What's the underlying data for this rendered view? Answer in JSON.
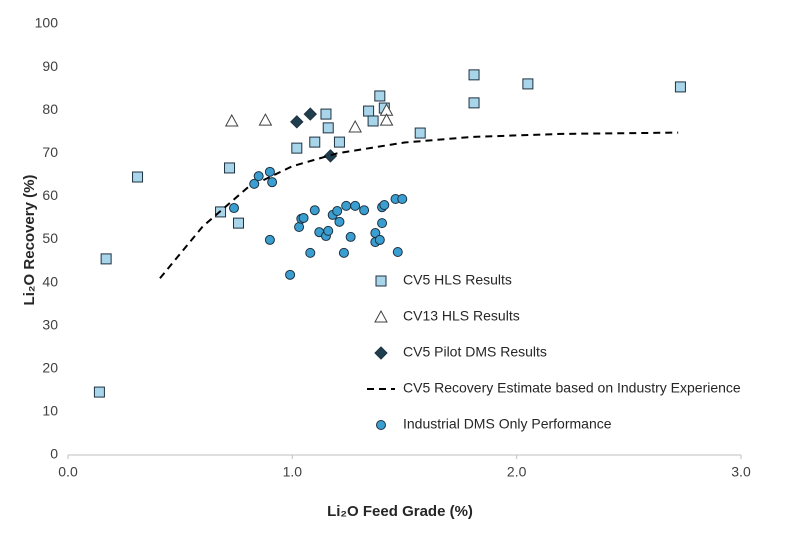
{
  "chart_data": {
    "type": "scatter",
    "x_label": "Li₂O Feed Grade (%)",
    "y_label": "Li₂O Recovery (%)",
    "xlim": [
      0,
      3
    ],
    "ylim": [
      0,
      100
    ],
    "xticks": [
      {
        "value": 0,
        "label": "0.0"
      },
      {
        "value": 1,
        "label": "1.0"
      },
      {
        "value": 2,
        "label": "2.0"
      },
      {
        "value": 3,
        "label": "3.0"
      }
    ],
    "yticks": [
      0,
      10,
      20,
      30,
      40,
      50,
      60,
      70,
      80,
      90,
      100
    ],
    "grid": false,
    "series": [
      {
        "name": "CV5 HLS Results",
        "marker": "square",
        "color": "#a9d5ea",
        "x": [
          0.14,
          0.17,
          0.31,
          0.68,
          0.72,
          0.76,
          1.02,
          1.1,
          1.15,
          1.16,
          1.21,
          1.34,
          1.36,
          1.39,
          1.41,
          1.57,
          1.81,
          1.81,
          2.05,
          2.73
        ],
        "values": [
          14.6,
          45.5,
          64.5,
          56.4,
          66.6,
          53.8,
          71.2,
          72.6,
          79.1,
          75.9,
          72.6,
          79.8,
          77.5,
          83.3,
          80.5,
          74.7,
          88.2,
          81.7,
          86.1,
          85.4
        ]
      },
      {
        "name": "CV13 HLS Results",
        "marker": "triangle",
        "color": "#ffffff",
        "x": [
          0.73,
          0.88,
          1.28,
          1.42,
          1.42
        ],
        "values": [
          77.5,
          77.7,
          76.1,
          80,
          77.7
        ]
      },
      {
        "name": "CV5 Pilot DMS Results",
        "marker": "diamond",
        "color": "#1f3f4f",
        "x": [
          1.02,
          1.08,
          1.17
        ],
        "values": [
          77.3,
          79.1,
          69.4
        ]
      },
      {
        "name": "CV5 Recovery Estimate based on Industry Experience",
        "marker": "line",
        "color": "#000000",
        "x": [
          0.41,
          0.6,
          0.8,
          1.0,
          1.2,
          1.5,
          1.8,
          2.2,
          2.72
        ],
        "values": [
          41,
          53,
          62,
          67,
          70,
          72.5,
          73.8,
          74.5,
          74.8
        ]
      },
      {
        "name": "Industrial DMS Only Performance",
        "marker": "circle",
        "color": "#3a9fd0",
        "x": [
          0.83,
          0.85,
          0.74,
          0.9,
          0.91,
          0.9,
          0.99,
          1.03,
          1.04,
          1.05,
          1.08,
          1.1,
          1.12,
          1.15,
          1.16,
          1.18,
          1.2,
          1.21,
          1.23,
          1.24,
          1.26,
          1.28,
          1.32,
          1.37,
          1.37,
          1.4,
          1.41,
          1.4,
          1.46,
          1.47,
          1.49,
          1.39
        ],
        "values": [
          62.9,
          64.7,
          57.3,
          65.7,
          63.3,
          49.9,
          41.8,
          52.9,
          54.8,
          55,
          46.9,
          56.8,
          51.7,
          50.8,
          52,
          55.7,
          56.6,
          54.1,
          46.9,
          57.8,
          50.6,
          57.8,
          56.8,
          51.5,
          49.4,
          57.5,
          58,
          53.8,
          59.4,
          47.1,
          59.4,
          49.9
        ]
      }
    ]
  }
}
